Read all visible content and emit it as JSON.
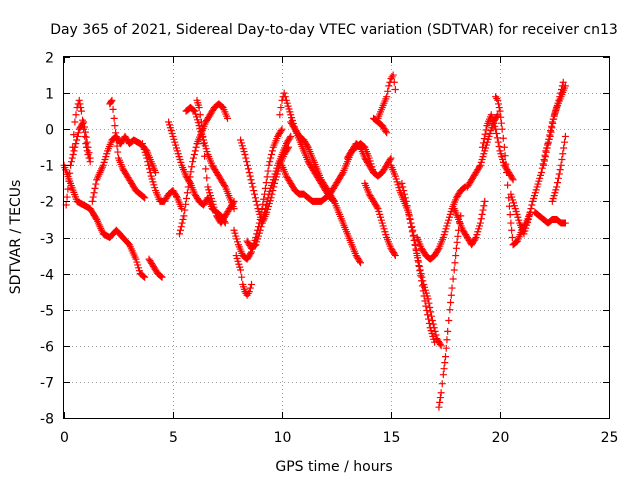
{
  "chart_data": {
    "type": "scatter",
    "title": "Day 365 of 2021, Sidereal Day-to-day VTEC variation (SDTVAR) for receiver cn13",
    "xlabel": "GPS time / hours",
    "ylabel": "SDTVAR / TECUs",
    "xlim": [
      0,
      25
    ],
    "ylim": [
      -8,
      2
    ],
    "xticks": [
      0,
      5,
      10,
      15,
      20,
      25
    ],
    "yticks": [
      2,
      1,
      0,
      -1,
      -2,
      -3,
      -4,
      -5,
      -6,
      -7,
      -8
    ],
    "grid": true,
    "marker": "+",
    "series": [
      {
        "name": "SDTVAR",
        "color": "#ff0000",
        "tracks": [
          {
            "x": [
              0.0,
              0.3,
              0.6,
              0.9,
              1.2,
              1.5,
              1.8,
              2.1,
              2.4,
              2.7,
              3.0,
              3.3,
              3.5,
              3.7
            ],
            "y": [
              -1.0,
              -1.5,
              -2.0,
              -2.1,
              -2.2,
              -2.5,
              -2.9,
              -3.0,
              -2.8,
              -3.0,
              -3.2,
              -3.6,
              -4.0,
              -4.1
            ]
          },
          {
            "x": [
              3.9,
              4.1,
              4.3,
              4.5
            ],
            "y": [
              -3.6,
              -3.8,
              -4.0,
              -4.1
            ]
          },
          {
            "x": [
              0.1,
              0.3,
              0.5,
              0.7,
              0.9,
              1.1,
              1.2
            ],
            "y": [
              -2.1,
              -1.0,
              -0.5,
              0.0,
              0.2,
              -0.5,
              -0.8
            ]
          },
          {
            "x": [
              0.4,
              0.5,
              0.6,
              0.7,
              0.8,
              0.9,
              1.0,
              1.1,
              1.2
            ],
            "y": [
              -0.5,
              0.2,
              0.6,
              0.8,
              0.5,
              0.0,
              -0.4,
              -0.7,
              -0.9
            ]
          },
          {
            "x": [
              1.3,
              1.5,
              1.8,
              2.0,
              2.2,
              2.4,
              2.6,
              2.8,
              3.0,
              3.2,
              3.5,
              3.8,
              4.0,
              4.2
            ],
            "y": [
              -2.0,
              -1.4,
              -1.0,
              -0.6,
              -0.3,
              -0.2,
              -0.4,
              -0.2,
              -0.4,
              -0.3,
              -0.4,
              -0.6,
              -0.9,
              -1.2
            ]
          },
          {
            "x": [
              2.1,
              2.2,
              2.3,
              2.4,
              2.5,
              2.7,
              2.9,
              3.1,
              3.3,
              3.5,
              3.7
            ],
            "y": [
              0.7,
              0.8,
              0.3,
              -0.3,
              -0.8,
              -1.1,
              -1.3,
              -1.5,
              -1.7,
              -1.8,
              -1.9
            ]
          },
          {
            "x": [
              3.6,
              3.8,
              4.0,
              4.2,
              4.4,
              4.6,
              4.8,
              5.0,
              5.2,
              5.4
            ],
            "y": [
              -0.4,
              -0.8,
              -1.3,
              -1.7,
              -2.0,
              -2.0,
              -1.8,
              -1.7,
              -1.9,
              -2.2
            ]
          },
          {
            "x": [
              4.8,
              5.0,
              5.2,
              5.4,
              5.6,
              5.8,
              6.0,
              6.2,
              6.4,
              6.6,
              6.8,
              7.0,
              7.2,
              7.4
            ],
            "y": [
              0.2,
              -0.2,
              -0.6,
              -1.0,
              -1.3,
              -1.5,
              -1.8,
              -2.0,
              -2.1,
              -1.9,
              -2.2,
              -2.3,
              -2.4,
              -2.6
            ]
          },
          {
            "x": [
              5.3,
              5.5,
              5.7,
              5.9,
              6.1,
              6.3,
              6.5,
              6.7,
              6.9,
              7.1,
              7.3,
              7.5
            ],
            "y": [
              -2.9,
              -2.4,
              -1.6,
              -0.9,
              -0.4,
              -0.1,
              0.2,
              0.4,
              0.6,
              0.7,
              0.6,
              0.3
            ]
          },
          {
            "x": [
              5.6,
              5.8,
              6.0,
              6.2,
              6.4,
              6.6,
              6.8,
              7.0,
              7.2,
              7.4,
              7.6,
              7.8
            ],
            "y": [
              0.5,
              0.6,
              0.5,
              0.1,
              -0.3,
              -0.7,
              -1.0,
              -1.2,
              -1.4,
              -1.6,
              -1.9,
              -2.2
            ]
          },
          {
            "x": [
              6.1,
              6.2,
              6.3,
              6.4,
              6.5,
              6.6,
              6.8,
              7.0,
              7.2,
              7.4,
              7.6,
              7.8
            ],
            "y": [
              0.8,
              0.6,
              0.2,
              -0.4,
              -1.1,
              -1.6,
              -2.0,
              -2.4,
              -2.6,
              -2.4,
              -2.2,
              -2.0
            ]
          },
          {
            "x": [
              7.9,
              8.1,
              8.2,
              8.3,
              8.4,
              8.5,
              8.6
            ],
            "y": [
              -3.5,
              -3.9,
              -4.3,
              -4.5,
              -4.6,
              -4.5,
              -4.3
            ]
          },
          {
            "x": [
              7.8,
              8.0,
              8.2,
              8.4,
              8.6,
              8.8,
              9.0,
              9.2,
              9.4,
              9.6,
              9.8,
              10.0
            ],
            "y": [
              -2.8,
              -3.2,
              -3.5,
              -3.6,
              -3.4,
              -3.0,
              -2.5,
              -1.8,
              -1.0,
              -0.5,
              -0.2,
              0.0
            ]
          },
          {
            "x": [
              8.1,
              8.3,
              8.5,
              8.7,
              8.9,
              9.1,
              9.3,
              9.5,
              9.7,
              9.9,
              10.1,
              10.3
            ],
            "y": [
              -0.3,
              -0.7,
              -1.2,
              -1.7,
              -2.2,
              -2.6,
              -2.3,
              -1.9,
              -1.4,
              -1.0,
              -0.7,
              -0.5
            ]
          },
          {
            "x": [
              8.4,
              8.6,
              8.8,
              9.0,
              9.2,
              9.4,
              9.6,
              9.8,
              10.0,
              10.2,
              10.4
            ],
            "y": [
              -3.1,
              -3.3,
              -3.2,
              -2.8,
              -2.3,
              -1.8,
              -1.4,
              -1.0,
              -0.7,
              -0.4,
              -0.2
            ]
          },
          {
            "x": [
              9.9,
              10.0,
              10.1,
              10.2,
              10.4,
              10.6,
              10.8,
              11.0,
              11.2,
              11.4,
              11.6,
              11.8,
              12.0,
              12.2,
              12.4
            ],
            "y": [
              0.4,
              0.8,
              1.0,
              0.8,
              0.4,
              0.0,
              -0.3,
              -0.6,
              -0.9,
              -1.1,
              -1.3,
              -1.5,
              -1.7,
              -1.9,
              -2.0
            ]
          },
          {
            "x": [
              10.0,
              10.2,
              10.4,
              10.6,
              10.8,
              11.0,
              11.2,
              11.4,
              11.6,
              11.8,
              12.0
            ],
            "y": [
              -1.0,
              -1.3,
              -1.5,
              -1.7,
              -1.8,
              -1.8,
              -1.9,
              -2.0,
              -2.0,
              -2.0,
              -1.9
            ]
          },
          {
            "x": [
              10.4,
              10.6,
              10.8,
              11.0,
              11.2,
              11.4,
              11.6,
              11.8,
              12.0,
              12.2,
              12.4,
              12.6,
              12.8,
              13.0,
              13.2,
              13.4,
              13.6
            ],
            "y": [
              0.2,
              0.0,
              -0.2,
              -0.3,
              -0.5,
              -0.8,
              -1.1,
              -1.4,
              -1.6,
              -1.8,
              -2.0,
              -2.3,
              -2.6,
              -2.9,
              -3.2,
              -3.5,
              -3.7
            ]
          },
          {
            "x": [
              12.0,
              12.2,
              12.4,
              12.6,
              12.8,
              13.0,
              13.2,
              13.4,
              13.6,
              13.8,
              14.0,
              14.2
            ],
            "y": [
              -1.9,
              -1.8,
              -1.6,
              -1.4,
              -1.2,
              -0.9,
              -0.6,
              -0.5,
              -0.4,
              -0.5,
              -0.8,
              -1.2
            ]
          },
          {
            "x": [
              13.0,
              13.2,
              13.4,
              13.6,
              13.8,
              14.0,
              14.2,
              14.4,
              14.6,
              14.8,
              15.0
            ],
            "y": [
              -0.8,
              -0.6,
              -0.4,
              -0.5,
              -0.8,
              -1.0,
              -1.2,
              -1.3,
              -1.2,
              -1.0,
              -0.8
            ]
          },
          {
            "x": [
              13.8,
              14.0,
              14.2,
              14.4,
              14.6,
              14.8,
              15.0,
              15.2
            ],
            "y": [
              -1.5,
              -1.8,
              -2.0,
              -2.2,
              -2.6,
              -3.0,
              -3.3,
              -3.5
            ]
          },
          {
            "x": [
              14.4,
              14.6,
              14.8,
              14.9,
              15.0,
              15.1,
              15.2
            ],
            "y": [
              0.3,
              0.6,
              0.9,
              1.2,
              1.4,
              1.5,
              1.1
            ]
          },
          {
            "x": [
              14.2,
              14.4,
              14.6,
              14.8
            ],
            "y": [
              0.3,
              0.2,
              0.1,
              -0.1
            ]
          },
          {
            "x": [
              15.0,
              15.2,
              15.4,
              15.6,
              15.8,
              16.0,
              16.2,
              16.4,
              16.6,
              16.8,
              17.0
            ],
            "y": [
              -1.0,
              -1.3,
              -1.7,
              -2.0,
              -2.3,
              -2.8,
              -3.5,
              -4.2,
              -4.9,
              -5.5,
              -5.9
            ]
          },
          {
            "x": [
              15.5,
              15.7,
              15.9,
              16.1,
              16.3,
              16.5,
              16.7,
              16.9,
              17.1,
              17.3
            ],
            "y": [
              -1.5,
              -2.0,
              -2.6,
              -3.2,
              -3.8,
              -4.3,
              -4.7,
              -5.3,
              -5.8,
              -6.0
            ]
          },
          {
            "x": [
              16.2,
              16.4,
              16.6,
              16.8,
              17.0,
              17.2,
              17.4,
              17.6,
              17.8,
              18.0,
              18.2,
              18.4
            ],
            "y": [
              -3.0,
              -3.3,
              -3.5,
              -3.6,
              -3.5,
              -3.3,
              -3.0,
              -2.6,
              -2.2,
              -1.9,
              -1.7,
              -1.6
            ]
          },
          {
            "x": [
              17.2,
              17.3,
              17.4,
              17.5,
              17.6,
              17.7,
              17.8,
              17.9,
              18.0,
              18.1,
              18.2
            ],
            "y": [
              -7.7,
              -7.3,
              -6.8,
              -6.3,
              -5.6,
              -5.0,
              -4.4,
              -3.9,
              -3.3,
              -2.8,
              -2.4
            ]
          },
          {
            "x": [
              17.9,
              18.1,
              18.3,
              18.5,
              18.7,
              18.9,
              19.1,
              19.3
            ],
            "y": [
              -2.2,
              -2.5,
              -2.8,
              -3.0,
              -3.2,
              -3.0,
              -2.6,
              -2.0
            ]
          },
          {
            "x": [
              18.5,
              18.7,
              18.9,
              19.1,
              19.3,
              19.5,
              19.7,
              19.9
            ],
            "y": [
              -1.6,
              -1.4,
              -1.2,
              -1.0,
              -0.6,
              -0.2,
              0.2,
              0.4
            ]
          },
          {
            "x": [
              19.2,
              19.4,
              19.6,
              19.8,
              20.0,
              20.2,
              20.4,
              20.6
            ],
            "y": [
              -0.5,
              0.1,
              0.4,
              0.0,
              -0.6,
              -1.0,
              -1.2,
              -1.4
            ]
          },
          {
            "x": [
              19.8,
              19.9,
              20.0,
              20.1,
              20.2,
              20.3,
              20.4,
              20.5,
              20.6,
              20.8,
              21.0,
              21.2,
              21.4
            ],
            "y": [
              0.9,
              0.8,
              0.5,
              0.0,
              -0.5,
              -1.2,
              -1.9,
              -2.6,
              -3.2,
              -3.1,
              -2.8,
              -2.6,
              -2.3
            ]
          },
          {
            "x": [
              20.5,
              20.7,
              20.9,
              21.1,
              21.3,
              21.5,
              21.7,
              21.9,
              22.1,
              22.3,
              22.5,
              22.7,
              22.9
            ],
            "y": [
              -1.8,
              -2.2,
              -2.6,
              -2.9,
              -2.5,
              -2.0,
              -1.6,
              -1.2,
              -0.6,
              -0.2,
              0.4,
              0.8,
              1.3
            ]
          },
          {
            "x": [
              21.6,
              21.8,
              22.0,
              22.2,
              22.4,
              22.6,
              22.8,
              23.0
            ],
            "y": [
              -2.3,
              -2.4,
              -2.5,
              -2.6,
              -2.5,
              -2.5,
              -2.6,
              -2.6
            ]
          },
          {
            "x": [
              22.0,
              22.2,
              22.4,
              22.6,
              22.8,
              23.0
            ],
            "y": [
              -1.0,
              -0.4,
              0.2,
              0.6,
              0.9,
              1.2
            ]
          },
          {
            "x": [
              22.4,
              22.6,
              22.8,
              23.0
            ],
            "y": [
              -2.0,
              -1.6,
              -1.0,
              -0.2
            ]
          }
        ]
      }
    ]
  }
}
